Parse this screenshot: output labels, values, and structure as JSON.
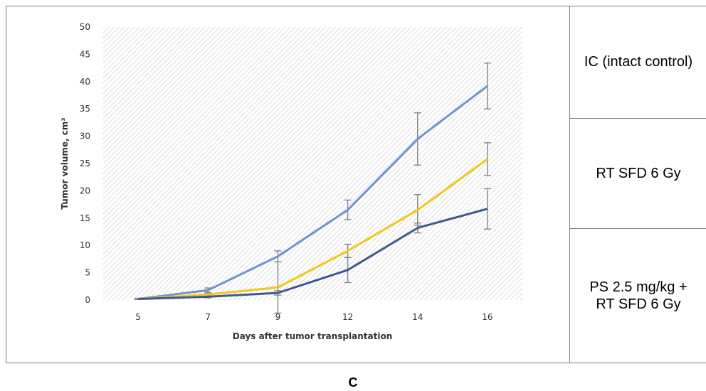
{
  "panel_label": "C",
  "legend": {
    "items": [
      "IC (intact control)",
      "RT SFD 6 Gy",
      "PS 2.5 mg/kg +\nRT SFD 6 Gy"
    ]
  },
  "colors": {
    "background_hatch": "#d4d4d4",
    "error_bars": "#8c8c8c",
    "frame": "#7a7a7a"
  },
  "chart_data": {
    "type": "line",
    "xlabel": "Days after tumor transplantation",
    "ylabel": "Tumor volume, cm³",
    "categories": [
      "5",
      "7",
      "9",
      "12",
      "14",
      "16"
    ],
    "ylim": [
      0,
      50
    ],
    "yticks": [
      0,
      5,
      10,
      15,
      20,
      25,
      30,
      35,
      40,
      45,
      50
    ],
    "grid": false,
    "background": "diagonal hatch",
    "series": [
      {
        "color": "#6f93cf",
        "values": [
          0.2,
          1.8,
          8.0,
          16.5,
          29.5,
          39.2
        ],
        "errors": [
          0.1,
          0.4,
          1.0,
          1.8,
          4.8,
          4.2
        ]
      },
      {
        "color": "#f5c518",
        "values": [
          0.2,
          1.0,
          2.3,
          9.0,
          16.5,
          25.8
        ],
        "errors": [
          0.1,
          0.3,
          4.7,
          1.2,
          2.8,
          3.0
        ]
      },
      {
        "color": "#3e5a8a",
        "values": [
          0.2,
          0.6,
          1.3,
          5.5,
          13.2,
          16.7
        ],
        "errors": [
          0.1,
          0.2,
          0.4,
          2.3,
          0.9,
          3.7
        ]
      }
    ]
  }
}
